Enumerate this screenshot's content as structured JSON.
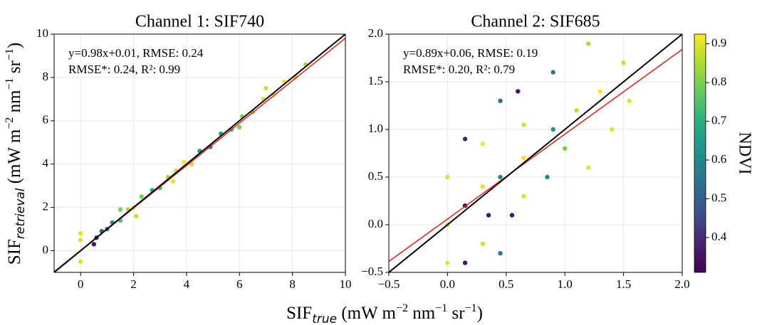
{
  "chart_data": [
    {
      "type": "scatter",
      "title": "Channel 1: SIF740",
      "x_label": [
        "SIF",
        "true",
        " (mW m",
        "−2",
        " nm",
        "−1",
        " sr",
        "−1",
        ")"
      ],
      "y_label": [
        "SIF",
        "retrieval",
        " (mW m",
        "−2",
        " nm",
        "−1",
        " sr",
        "−1",
        ")"
      ],
      "annotations": [
        "y=0.98x+0.01, RMSE: 0.24",
        "RMSE*: 0.24, R²: 0.99"
      ],
      "fit": {
        "slope": 0.98,
        "intercept": 0.01,
        "color": "#e8261f"
      },
      "identity_color": "#000000",
      "xlim": [
        -1,
        10
      ],
      "ylim": [
        -1,
        10
      ],
      "xticks": [
        0,
        2,
        4,
        6,
        8,
        10
      ],
      "yticks": [
        0,
        2,
        4,
        6,
        8,
        10
      ],
      "grid": true,
      "colormap": "viridis",
      "x": [
        0,
        0,
        0,
        0.5,
        0.6,
        0.8,
        1.0,
        1.2,
        1.5,
        1.8,
        2.0,
        2.1,
        2.3,
        2.7,
        3.0,
        3.3,
        3.6,
        3.9,
        4.2,
        4.5,
        4.9,
        5.3,
        5.7,
        6.1,
        6.5,
        6.9,
        7.3,
        7.7,
        8.1,
        8.5,
        3.5,
        7.0,
        1.5,
        6.0
      ],
      "y": [
        0.5,
        -0.5,
        0.8,
        0.3,
        0.6,
        0.9,
        1.0,
        1.3,
        1.4,
        1.9,
        2.0,
        1.6,
        2.5,
        2.8,
        2.9,
        3.4,
        3.7,
        4.1,
        4.0,
        4.6,
        4.8,
        5.4,
        5.6,
        6.2,
        6.4,
        7.0,
        7.2,
        7.8,
        8.0,
        8.6,
        3.2,
        7.5,
        1.9,
        5.7
      ],
      "c": [
        0.9,
        0.9,
        0.9,
        0.35,
        0.4,
        0.5,
        0.55,
        0.6,
        0.75,
        0.85,
        0.9,
        0.88,
        0.8,
        0.7,
        0.75,
        0.85,
        0.9,
        0.92,
        0.88,
        0.6,
        0.55,
        0.65,
        0.75,
        0.8,
        0.85,
        0.9,
        0.92,
        0.9,
        0.88,
        0.85,
        0.9,
        0.88,
        0.8,
        0.8
      ]
    },
    {
      "type": "scatter",
      "title": "Channel 2: SIF685",
      "annotations": [
        "y=0.89x+0.06, RMSE: 0.19",
        "RMSE*: 0.20, R²: 0.79"
      ],
      "fit": {
        "slope": 0.89,
        "intercept": 0.06,
        "color": "#e8261f"
      },
      "identity_color": "#000000",
      "xlim": [
        -0.5,
        2.0
      ],
      "ylim": [
        -0.5,
        2.0
      ],
      "xticks": [
        {
          "value": -0.5,
          "label": "−0.5"
        },
        {
          "value": 0,
          "label": "0.0"
        },
        0.5,
        {
          "value": 1,
          "label": "1.0"
        },
        1.5,
        {
          "value": 2,
          "label": "2.0"
        }
      ],
      "yticks": [
        {
          "value": -0.5,
          "label": "−0.5"
        },
        {
          "value": 0,
          "label": "0.0"
        },
        0.5,
        {
          "value": 1,
          "label": "1.0"
        },
        1.5,
        {
          "value": 2,
          "label": "2.0"
        }
      ],
      "grid": true,
      "colormap": "viridis",
      "x": [
        0,
        0,
        0,
        0.15,
        0.15,
        0.15,
        0.3,
        0.3,
        0.3,
        0.35,
        0.45,
        0.45,
        0.45,
        0.55,
        0.65,
        0.65,
        0.65,
        0.6,
        0.85,
        0.9,
        0.9,
        1.0,
        1.1,
        1.2,
        1.3,
        1.4,
        1.5,
        1.2,
        1.55
      ],
      "y": [
        0.5,
        0,
        -0.4,
        -0.4,
        0.2,
        0.9,
        -0.2,
        0.4,
        0.85,
        0.1,
        -0.3,
        0.5,
        1.3,
        0.1,
        0.3,
        0.7,
        1.05,
        1.4,
        0.5,
        1.0,
        1.6,
        0.8,
        1.2,
        0.6,
        1.4,
        1.0,
        1.7,
        1.9,
        1.3
      ],
      "c": [
        0.9,
        0.9,
        0.9,
        0.35,
        0.33,
        0.38,
        0.88,
        0.9,
        0.92,
        0.35,
        0.55,
        0.6,
        0.55,
        0.35,
        0.9,
        0.92,
        0.88,
        0.35,
        0.6,
        0.62,
        0.55,
        0.8,
        0.88,
        0.9,
        0.92,
        0.9,
        0.88,
        0.85,
        0.9
      ],
      "colorbar": {
        "label": "NDVI",
        "lim": [
          0.31,
          0.925
        ],
        "ticks": [
          0.4,
          0.5,
          0.6,
          0.7,
          0.8,
          0.9
        ]
      }
    }
  ]
}
